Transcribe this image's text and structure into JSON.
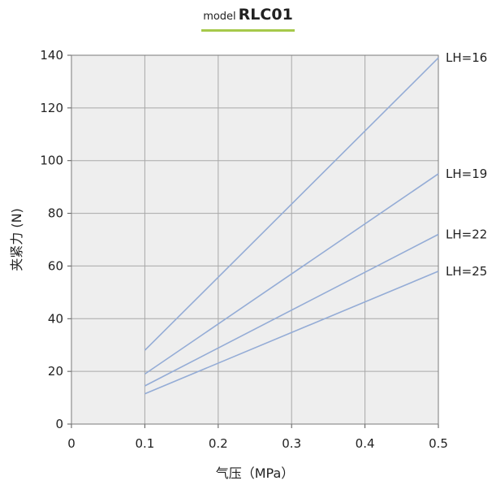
{
  "chart_data": {
    "type": "line",
    "title_prefix": "model",
    "title": "RLC01",
    "xlabel": "气压（MPa）",
    "ylabel": "夹紧力 (N)",
    "xlim": [
      0,
      0.5
    ],
    "ylim": [
      0,
      140
    ],
    "x_ticks": [
      "0",
      "0.1",
      "0.2",
      "0.3",
      "0.4",
      "0.5"
    ],
    "y_ticks": [
      "0",
      "20",
      "40",
      "60",
      "80",
      "100",
      "120",
      "140"
    ],
    "grid": true,
    "legend_placement": "right",
    "colors": {
      "line": "#94acd6",
      "grid": "#a8a8a8",
      "plot_background": "#eeeeee",
      "title_underline": "#a6c94a"
    },
    "series": [
      {
        "name": "LH=16",
        "x": [
          0.1,
          0.5
        ],
        "y": [
          28,
          139
        ]
      },
      {
        "name": "LH=19",
        "x": [
          0.1,
          0.5
        ],
        "y": [
          19,
          95
        ]
      },
      {
        "name": "LH=22",
        "x": [
          0.1,
          0.5
        ],
        "y": [
          14.5,
          72
        ]
      },
      {
        "name": "LH=25",
        "x": [
          0.1,
          0.5
        ],
        "y": [
          11.5,
          58
        ]
      }
    ]
  }
}
